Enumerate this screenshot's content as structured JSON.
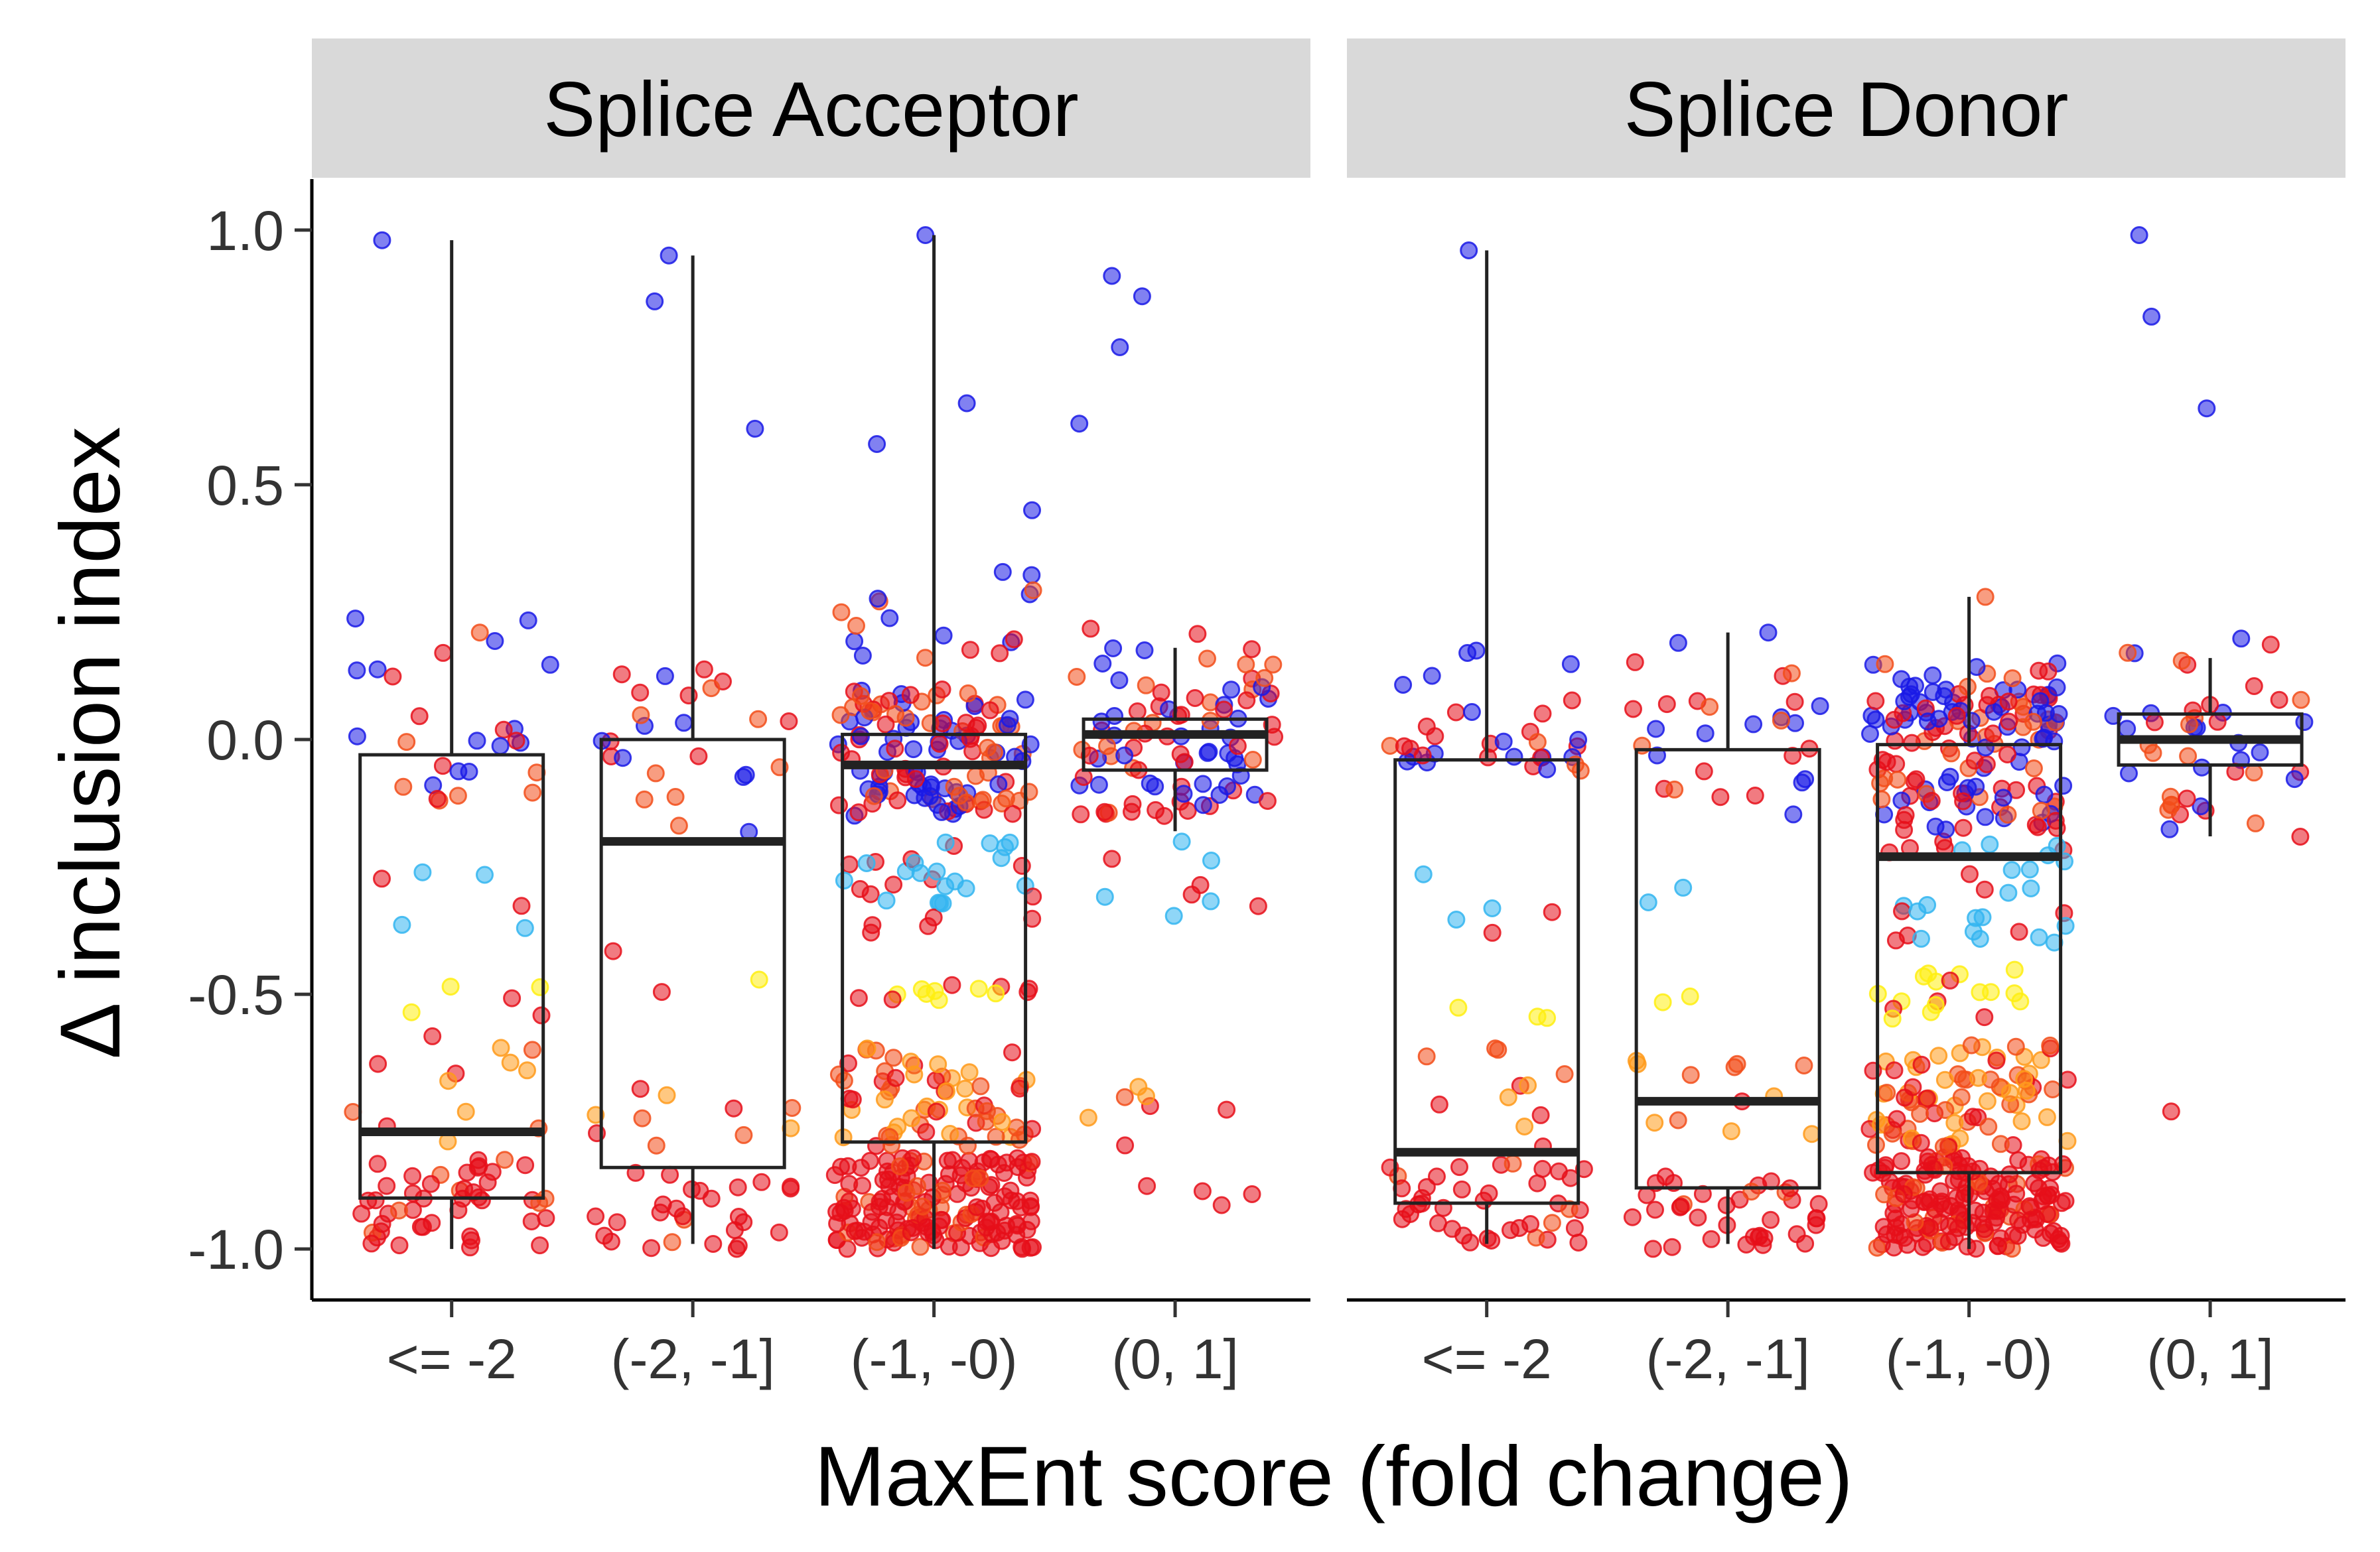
{
  "chart_data": {
    "type": "boxplot",
    "xlabel": "MaxEnt score (fold change)",
    "ylabel": "Δ inclusion index",
    "ylim": [
      -1.1,
      1.1
    ],
    "yticks": [
      -1.0,
      -0.5,
      0.0,
      0.5,
      1.0
    ],
    "ytick_labels": [
      "-1.0",
      "-0.5",
      "0.0",
      "0.5",
      "1.0"
    ],
    "categories": [
      "<= -2",
      "(-2, -1]",
      "(-1, -0)",
      "(0, 1]"
    ],
    "legend": "none",
    "grid": false,
    "point_colors": {
      "blue": "#1a1ae6",
      "light_blue": "#33b5f0",
      "yellow": "#ffee11",
      "orange": "#ff9a1a",
      "orange_red": "#f24d1a",
      "red": "#e60f1a"
    },
    "facets": [
      {
        "label": "Splice Acceptor",
        "boxes": [
          {
            "category": "<= -2",
            "q1": -0.9,
            "median": -0.77,
            "q3": -0.03,
            "whisker_low": -1.0,
            "whisker_high": 0.98
          },
          {
            "category": "(-2, -1]",
            "q1": -0.84,
            "median": -0.2,
            "q3": 0.0,
            "whisker_low": -0.99,
            "whisker_high": 0.95
          },
          {
            "category": "(-1, -0)",
            "q1": -0.79,
            "median": -0.05,
            "q3": 0.01,
            "whisker_low": -1.0,
            "whisker_high": 0.99
          },
          {
            "category": "(0, 1]",
            "q1": -0.06,
            "median": 0.01,
            "q3": 0.04,
            "whisker_low": -0.18,
            "whisker_high": 0.18
          }
        ],
        "points": [
          {
            "category": "<= -2",
            "n": 95,
            "clusters": [
              {
                "y": [
                  -1.0,
                  -0.82
                ],
                "share": 0.48
              },
              {
                "y": [
                  -0.8,
                  -0.58
                ],
                "share": 0.14
              },
              {
                "y": [
                  -0.55,
                  -0.48
                ],
                "share": 0.05
              },
              {
                "y": [
                  -0.4,
                  -0.2
                ],
                "share": 0.06
              },
              {
                "y": [
                  -0.12,
                  0.05
                ],
                "share": 0.2
              },
              {
                "y": [
                  0.12,
                  0.25
                ],
                "share": 0.07
              }
            ],
            "extra": [
              0.98,
              0.21,
              0.17
            ]
          },
          {
            "category": "(-2, -1]",
            "n": 65,
            "clusters": [
              {
                "y": [
                  -1.0,
                  -0.85
                ],
                "share": 0.42
              },
              {
                "y": [
                  -0.8,
                  -0.6
                ],
                "share": 0.15
              },
              {
                "y": [
                  -0.5,
                  -0.4
                ],
                "share": 0.05
              },
              {
                "y": [
                  -0.25,
                  -0.1
                ],
                "share": 0.06
              },
              {
                "y": [
                  -0.08,
                  0.05
                ],
                "share": 0.22
              },
              {
                "y": [
                  0.08,
                  0.14
                ],
                "share": 0.1
              }
            ],
            "extra": [
              0.95,
              0.86,
              0.61
            ]
          },
          {
            "category": "(-1, -0)",
            "n": 420,
            "clusters": [
              {
                "y": [
                  -1.0,
                  -0.82
                ],
                "share": 0.4
              },
              {
                "y": [
                  -0.8,
                  -0.6
                ],
                "share": 0.15
              },
              {
                "y": [
                  -0.52,
                  -0.48
                ],
                "share": 0.03
              },
              {
                "y": [
                  -0.4,
                  -0.2
                ],
                "share": 0.08
              },
              {
                "y": [
                  -0.15,
                  0.1
                ],
                "share": 0.3
              },
              {
                "y": [
                  0.15,
                  0.33
                ],
                "share": 0.04
              }
            ],
            "extra": [
              0.99,
              0.66,
              0.58,
              0.45
            ]
          },
          {
            "category": "(0, 1]",
            "n": 110,
            "clusters": [
              {
                "y": [
                  -0.92,
                  -0.68
                ],
                "share": 0.1
              },
              {
                "y": [
                  -0.35,
                  -0.2
                ],
                "share": 0.08
              },
              {
                "y": [
                  -0.15,
                  0.12
                ],
                "share": 0.72
              },
              {
                "y": [
                  0.12,
                  0.22
                ],
                "share": 0.1
              }
            ],
            "extra": [
              0.91,
              0.87,
              0.77,
              0.62
            ]
          }
        ]
      },
      {
        "label": "Splice Donor",
        "boxes": [
          {
            "category": "<= -2",
            "q1": -0.91,
            "median": -0.81,
            "q3": -0.04,
            "whisker_low": -0.99,
            "whisker_high": 0.96
          },
          {
            "category": "(-2, -1]",
            "q1": -0.88,
            "median": -0.71,
            "q3": -0.02,
            "whisker_low": -0.99,
            "whisker_high": 0.21
          },
          {
            "category": "(-1, -0)",
            "q1": -0.85,
            "median": -0.23,
            "q3": -0.01,
            "whisker_low": -1.0,
            "whisker_high": 0.28
          },
          {
            "category": "(0, 1]",
            "q1": -0.05,
            "median": 0.0,
            "q3": 0.05,
            "whisker_low": -0.19,
            "whisker_high": 0.16
          }
        ],
        "points": [
          {
            "category": "<= -2",
            "n": 95,
            "clusters": [
              {
                "y": [
                  -1.0,
                  -0.83
                ],
                "share": 0.42
              },
              {
                "y": [
                  -0.8,
                  -0.6
                ],
                "share": 0.12
              },
              {
                "y": [
                  -0.55,
                  -0.5
                ],
                "share": 0.03
              },
              {
                "y": [
                  -0.38,
                  -0.22
                ],
                "share": 0.05
              },
              {
                "y": [
                  -0.08,
                  0.08
                ],
                "share": 0.3
              },
              {
                "y": [
                  0.1,
                  0.18
                ],
                "share": 0.05
              }
            ],
            "extra": [
              0.96
            ]
          },
          {
            "category": "(-2, -1]",
            "n": 80,
            "clusters": [
              {
                "y": [
                  -1.0,
                  -0.85
                ],
                "share": 0.45
              },
              {
                "y": [
                  -0.8,
                  -0.62
                ],
                "share": 0.15
              },
              {
                "y": [
                  -0.52,
                  -0.48
                ],
                "share": 0.02
              },
              {
                "y": [
                  -0.38,
                  -0.25
                ],
                "share": 0.03
              },
              {
                "y": [
                  -0.15,
                  0.08
                ],
                "share": 0.3
              },
              {
                "y": [
                  0.12,
                  0.2
                ],
                "share": 0.05
              }
            ],
            "extra": [
              0.21
            ]
          },
          {
            "category": "(-1, -0)",
            "n": 450,
            "clusters": [
              {
                "y": [
                  -1.0,
                  -0.82
                ],
                "share": 0.38
              },
              {
                "y": [
                  -0.8,
                  -0.6
                ],
                "share": 0.18
              },
              {
                "y": [
                  -0.55,
                  -0.45
                ],
                "share": 0.04
              },
              {
                "y": [
                  -0.4,
                  -0.2
                ],
                "share": 0.07
              },
              {
                "y": [
                  -0.18,
                  0.1
                ],
                "share": 0.3
              },
              {
                "y": [
                  0.1,
                  0.15
                ],
                "share": 0.03
              }
            ],
            "extra": [
              0.28
            ]
          },
          {
            "category": "(0, 1]",
            "n": 45,
            "clusters": [
              {
                "y": [
                  -0.2,
                  -0.08
                ],
                "share": 0.25
              },
              {
                "y": [
                  -0.08,
                  0.08
                ],
                "share": 0.6
              },
              {
                "y": [
                  0.1,
                  0.2
                ],
                "share": 0.15
              }
            ],
            "extra": [
              0.99,
              0.83,
              0.65,
              -0.73
            ]
          }
        ]
      }
    ]
  }
}
